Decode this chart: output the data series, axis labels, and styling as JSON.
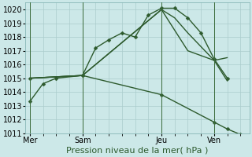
{
  "bg_color": "#cce8e8",
  "grid_color": "#aacccc",
  "line_color": "#2d5a2d",
  "marker_color": "#2d5a2d",
  "xlabel": "Pression niveau de la mer( hPa )",
  "xlabel_fontsize": 8,
  "tick_fontsize": 7,
  "ylim": [
    1011,
    1020.5
  ],
  "yticks": [
    1011,
    1012,
    1013,
    1014,
    1015,
    1016,
    1017,
    1018,
    1019,
    1020
  ],
  "xtick_labels": [
    "Mer",
    "Sam",
    "Jeu",
    "Ven"
  ],
  "xtick_positions": [
    0,
    24,
    60,
    84
  ],
  "vlines": [
    0,
    24,
    60,
    84
  ],
  "xlim": [
    -2,
    100
  ],
  "series": [
    {
      "x": [
        0,
        6,
        12,
        24,
        30,
        36,
        42,
        48,
        54,
        60,
        66,
        72,
        78,
        84,
        90
      ],
      "y": [
        1013.3,
        1014.6,
        1015.0,
        1015.2,
        1017.2,
        1017.8,
        1018.3,
        1018.0,
        1019.6,
        1020.1,
        1020.1,
        1019.4,
        1018.3,
        1016.4,
        1015.0
      ],
      "marker": "D",
      "markersize": 2.5,
      "linewidth": 1.0
    },
    {
      "x": [
        0,
        24,
        60,
        66,
        72,
        84,
        90
      ],
      "y": [
        1015.0,
        1015.2,
        1020.0,
        1019.4,
        1018.3,
        1016.3,
        1014.8
      ],
      "marker": null,
      "markersize": 0,
      "linewidth": 1.0
    },
    {
      "x": [
        0,
        24,
        60,
        72,
        84,
        90
      ],
      "y": [
        1015.0,
        1015.2,
        1020.0,
        1017.0,
        1016.3,
        1016.5
      ],
      "marker": null,
      "markersize": 0,
      "linewidth": 1.0
    },
    {
      "x": [
        0,
        24,
        60,
        84,
        90,
        96
      ],
      "y": [
        1015.0,
        1015.2,
        1013.8,
        1011.8,
        1011.3,
        1010.9
      ],
      "marker": "D",
      "markersize": 2.5,
      "linewidth": 1.0
    }
  ]
}
